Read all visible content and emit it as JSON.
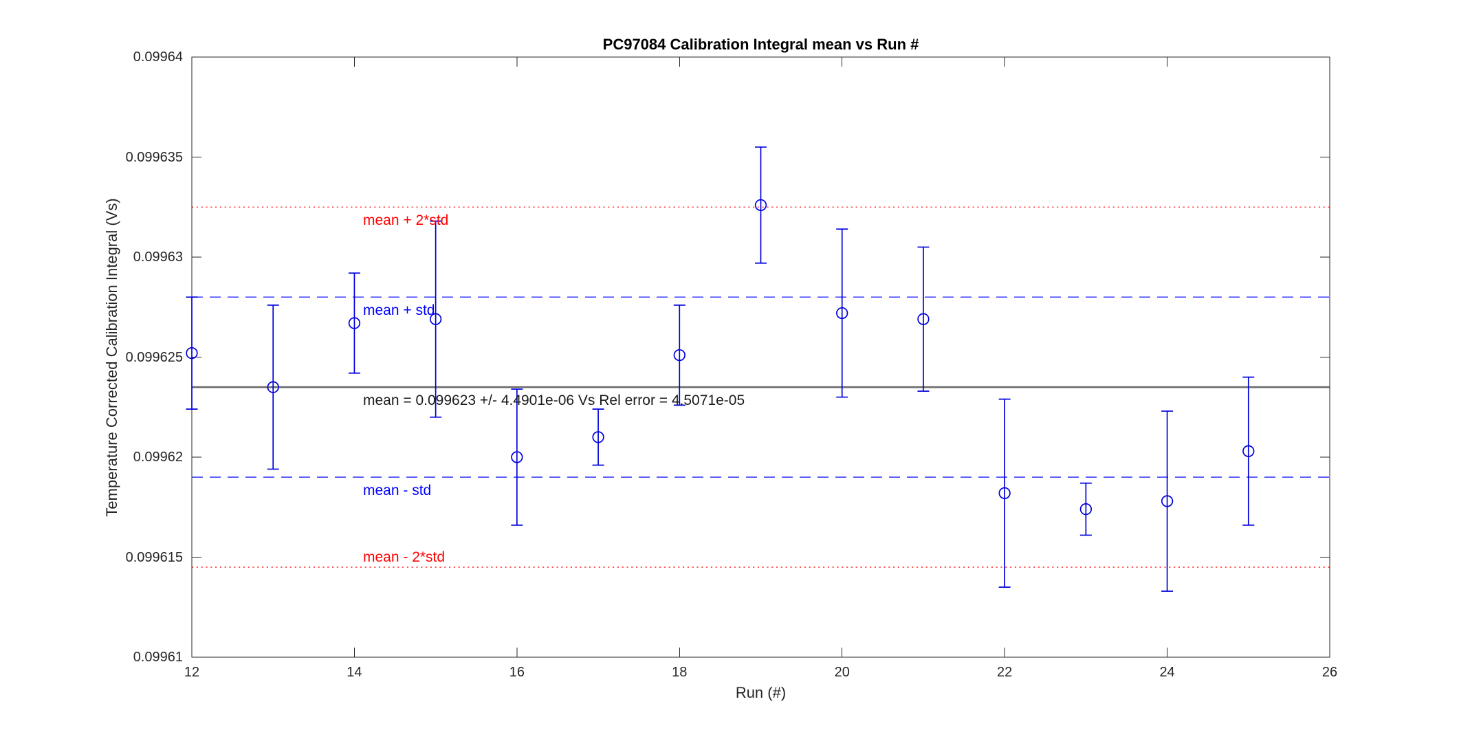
{
  "figure": {
    "background": "#ffffff"
  },
  "chart_data": {
    "type": "scatter",
    "title": "PC97084 Calibration Integral mean vs Run #",
    "xlabel": "Run (#)",
    "ylabel": "Temperature Corrected Calibration Integral (Vs)",
    "xlim": [
      12,
      26
    ],
    "ylim": [
      0.09961,
      0.09964
    ],
    "x_ticks": [
      12,
      14,
      16,
      18,
      20,
      22,
      24,
      26
    ],
    "x_tick_labels": [
      "12",
      "14",
      "16",
      "18",
      "20",
      "22",
      "24",
      "26"
    ],
    "y_ticks": [
      0.09961,
      0.099615,
      0.09962,
      0.099625,
      0.09963,
      0.099635,
      0.09964
    ],
    "y_tick_labels": [
      "0.09961",
      "0.099615",
      "0.09962",
      "0.099625",
      "0.09963",
      "0.099635",
      "0.09964"
    ],
    "grid": false,
    "legend": "none",
    "axis_color": "#262626",
    "series": [
      {
        "name": "calibration-integral-mean-vs-run",
        "marker": "circle",
        "marker_fill": "none",
        "color": "#0000dd",
        "x": [
          12,
          13,
          14,
          15,
          16,
          17,
          18,
          19,
          20,
          21,
          22,
          23,
          24,
          25
        ],
        "y": [
          0.0996252,
          0.0996235,
          0.0996267,
          0.0996269,
          0.09962,
          0.099621,
          0.0996251,
          0.0996326,
          0.0996272,
          0.0996269,
          0.0996182,
          0.0996174,
          0.0996178,
          0.0996203
        ],
        "yerr": [
          2.8e-06,
          4.1e-06,
          2.5e-06,
          4.9e-06,
          3.4e-06,
          1.4e-06,
          2.5e-06,
          2.9e-06,
          4.2e-06,
          3.6e-06,
          4.7e-06,
          1.3e-06,
          4.5e-06,
          3.7e-06
        ]
      }
    ],
    "reference_lines": [
      {
        "name": "mean-plus-2std",
        "label": "mean + 2*std",
        "value": 0.0996325,
        "style": "dotted",
        "color": "#ff4040",
        "width": 1.6,
        "dash": "2.2 4.6",
        "label_color": "#ff0000",
        "label_position": "below"
      },
      {
        "name": "mean-plus-std",
        "label": "mean + std",
        "value": 0.099628,
        "style": "dashed",
        "color": "#4d4dff",
        "width": 1.7,
        "dash": "16 10",
        "label_color": "#0000ff",
        "label_position": "below"
      },
      {
        "name": "mean",
        "label": "mean = 0.099623 +/- 4.4901e-06 Vs Rel error = 4.5071e-05",
        "value": 0.0996235,
        "style": "solid",
        "color": "#6b6b6b",
        "width": 2.6,
        "dash": "",
        "label_color": "#1a1a1a",
        "label_position": "below"
      },
      {
        "name": "mean-minus-std",
        "label": "mean - std",
        "value": 0.099619,
        "style": "dashed",
        "color": "#4d4dff",
        "width": 1.7,
        "dash": "16 10",
        "label_color": "#0000ff",
        "label_position": "below"
      },
      {
        "name": "mean-minus-2std",
        "label": "mean - 2*std",
        "value": 0.0996145,
        "style": "dotted",
        "color": "#ff4040",
        "width": 1.6,
        "dash": "2.2 4.6",
        "label_color": "#ff0000",
        "label_position": "above"
      }
    ],
    "stats": {
      "mean": "0.099623",
      "std": "4.4901e-06",
      "rel_error": "4.5071e-05",
      "units": "Vs"
    }
  }
}
